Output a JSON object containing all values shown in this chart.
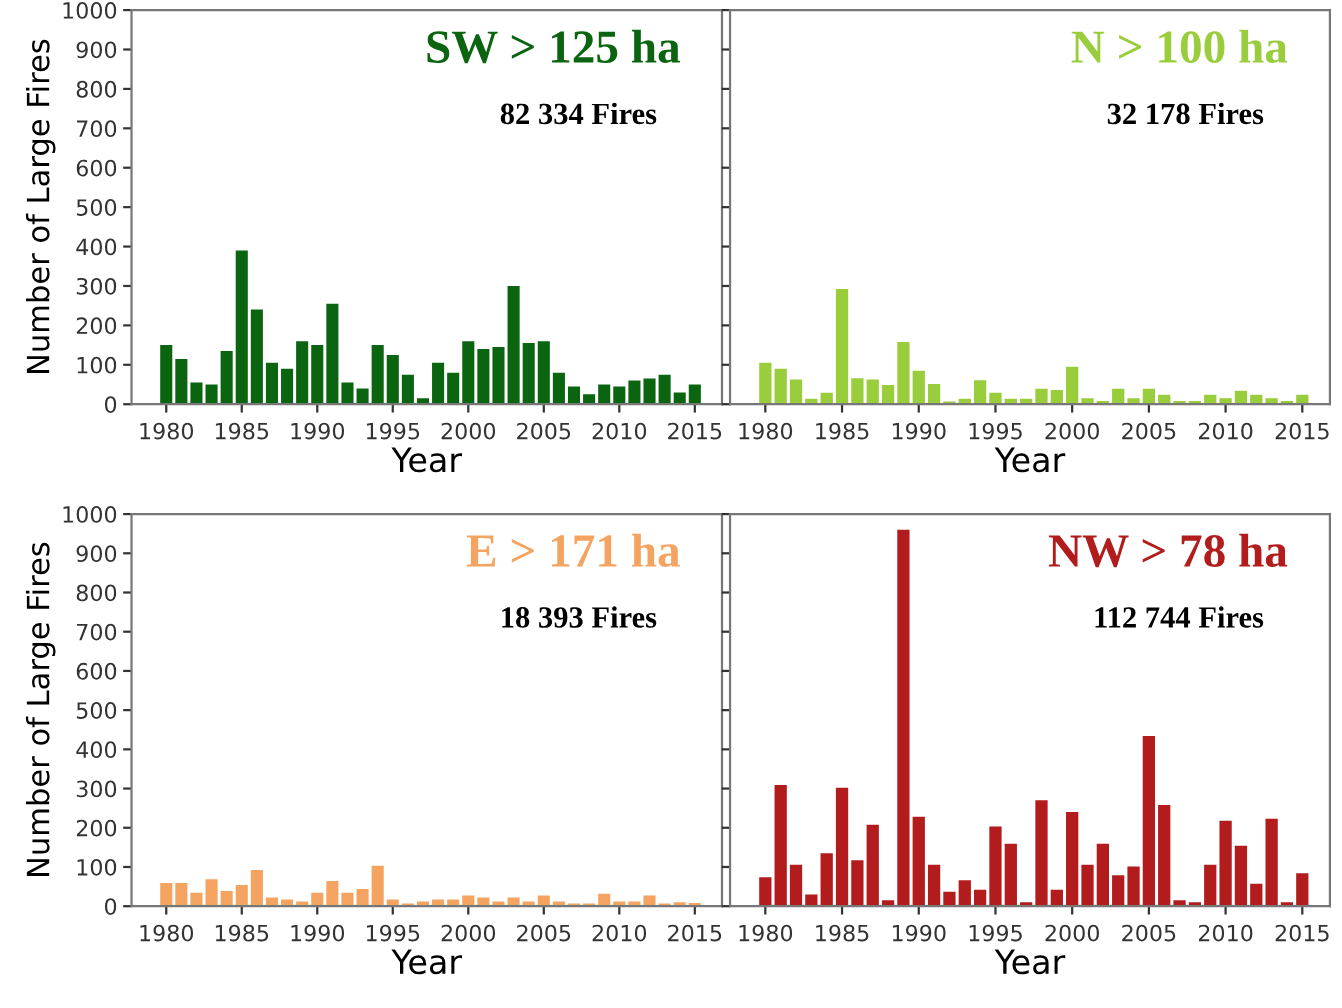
{
  "chart_data": [
    {
      "type": "bar",
      "title": "SW > 125 ha",
      "subtitle": "82 334 Fires",
      "xlabel": "Year",
      "ylabel": "Number of Large Fires",
      "x": [
        1980,
        1981,
        1982,
        1983,
        1984,
        1985,
        1986,
        1987,
        1988,
        1989,
        1990,
        1991,
        1992,
        1993,
        1994,
        1995,
        1996,
        1997,
        1998,
        1999,
        2000,
        2001,
        2002,
        2003,
        2004,
        2005,
        2006,
        2007,
        2008,
        2009,
        2010,
        2011,
        2012,
        2013,
        2014,
        2015
      ],
      "series": [
        {
          "color": "#0a6410",
          "values": [
            150,
            115,
            55,
            50,
            135,
            390,
            240,
            105,
            90,
            160,
            150,
            255,
            55,
            40,
            150,
            125,
            75,
            15,
            105,
            80,
            160,
            140,
            145,
            300,
            155,
            160,
            80,
            45,
            25,
            50,
            45,
            60,
            65,
            75,
            30,
            50
          ]
        }
      ],
      "xlim": [
        1977.7,
        2016.8
      ],
      "xticks": [
        1980,
        1985,
        1990,
        1995,
        2000,
        2005,
        2010,
        2015
      ],
      "ylim": [
        0,
        1000
      ],
      "yticks": [
        0,
        100,
        200,
        300,
        400,
        500,
        600,
        700,
        800,
        900,
        1000
      ],
      "grid": false
    },
    {
      "type": "bar",
      "title": "N > 100 ha",
      "subtitle": "32 178 Fires",
      "xlabel": "Year",
      "x": [
        1980,
        1981,
        1982,
        1983,
        1984,
        1985,
        1986,
        1987,
        1988,
        1989,
        1990,
        1991,
        1992,
        1993,
        1994,
        1995,
        1996,
        1997,
        1998,
        1999,
        2000,
        2001,
        2002,
        2003,
        2004,
        2005,
        2006,
        2007,
        2008,
        2009,
        2010,
        2011,
        2012,
        2013,
        2014,
        2015
      ],
      "series": [
        {
          "color": "#9acd3c",
          "values": [
            105,
            90,
            63,
            14,
            29,
            292,
            66,
            63,
            49,
            158,
            85,
            51,
            7,
            14,
            61,
            29,
            14,
            14,
            39,
            36,
            95,
            15,
            8,
            39,
            15,
            39,
            24,
            8,
            8,
            24,
            15,
            34,
            24,
            15,
            8,
            24
          ]
        }
      ],
      "xlim": [
        1977.7,
        2016.8
      ],
      "xticks": [
        1980,
        1985,
        1990,
        1995,
        2000,
        2005,
        2010,
        2015
      ],
      "ylim": [
        0,
        1000
      ],
      "yticks": [
        {
          "value": 0,
          "label": null
        },
        {
          "value": 100,
          "label": null
        },
        {
          "value": 200,
          "label": null
        },
        {
          "value": 300,
          "label": null
        },
        {
          "value": 400,
          "label": null
        },
        {
          "value": 500,
          "label": null
        },
        {
          "value": 600,
          "label": null
        },
        {
          "value": 700,
          "label": null
        },
        {
          "value": 800,
          "label": null
        },
        {
          "value": 900,
          "label": null
        },
        {
          "value": 1000,
          "label": null
        }
      ],
      "tick_labels": "x",
      "grid": false
    },
    {
      "type": "bar",
      "title": "E > 171 ha",
      "subtitle": "18 393 Fires",
      "xlabel": "Year",
      "ylabel": "Number of Large Fires",
      "x": [
        1980,
        1981,
        1982,
        1983,
        1984,
        1985,
        1986,
        1987,
        1988,
        1989,
        1990,
        1991,
        1992,
        1993,
        1994,
        1995,
        1996,
        1997,
        1998,
        1999,
        2000,
        2001,
        2002,
        2003,
        2004,
        2005,
        2006,
        2007,
        2008,
        2009,
        2010,
        2011,
        2012,
        2013,
        2014,
        2015
      ],
      "series": [
        {
          "color": "#f4a460",
          "values": [
            59,
            59,
            34,
            69,
            39,
            54,
            92,
            22,
            17,
            12,
            34,
            64,
            34,
            44,
            103,
            17,
            7,
            12,
            17,
            17,
            27,
            22,
            12,
            22,
            12,
            27,
            12,
            7,
            7,
            32,
            12,
            12,
            27,
            7,
            10,
            8
          ]
        }
      ],
      "xlim": [
        1977.7,
        2016.8
      ],
      "xticks": [
        1980,
        1985,
        1990,
        1995,
        2000,
        2005,
        2010,
        2015
      ],
      "ylim": [
        0,
        1000
      ],
      "yticks": [
        0,
        100,
        200,
        300,
        400,
        500,
        600,
        700,
        800,
        900,
        1000
      ],
      "grid": false
    },
    {
      "type": "bar",
      "title": "NW > 78 ha",
      "subtitle": "112 744 Fires",
      "xlabel": "Year",
      "x": [
        1980,
        1981,
        1982,
        1983,
        1984,
        1985,
        1986,
        1987,
        1988,
        1989,
        1990,
        1991,
        1992,
        1993,
        1994,
        1995,
        1996,
        1997,
        1998,
        1999,
        2000,
        2001,
        2002,
        2003,
        2004,
        2005,
        2006,
        2007,
        2008,
        2009,
        2010,
        2011,
        2012,
        2013,
        2014,
        2015
      ],
      "series": [
        {
          "color": "#b21c1c",
          "values": [
            74,
            309,
            106,
            30,
            135,
            302,
            117,
            208,
            15,
            960,
            228,
            106,
            37,
            66,
            42,
            203,
            159,
            10,
            270,
            42,
            240,
            106,
            159,
            79,
            101,
            434,
            258,
            15,
            10,
            106,
            218,
            154,
            57,
            223,
            10,
            84
          ]
        }
      ],
      "xlim": [
        1977.7,
        2016.8
      ],
      "xticks": [
        1980,
        1985,
        1990,
        1995,
        2000,
        2005,
        2010,
        2015
      ],
      "ylim": [
        0,
        1000
      ],
      "yticks": [
        {
          "value": 0,
          "label": null
        },
        {
          "value": 100,
          "label": null
        },
        {
          "value": 200,
          "label": null
        },
        {
          "value": 300,
          "label": null
        },
        {
          "value": 400,
          "label": null
        },
        {
          "value": 500,
          "label": null
        },
        {
          "value": 600,
          "label": null
        },
        {
          "value": 700,
          "label": null
        },
        {
          "value": 800,
          "label": null
        },
        {
          "value": 900,
          "label": null
        },
        {
          "value": 1000,
          "label": null
        }
      ],
      "tick_labels": "x",
      "grid": false
    }
  ]
}
